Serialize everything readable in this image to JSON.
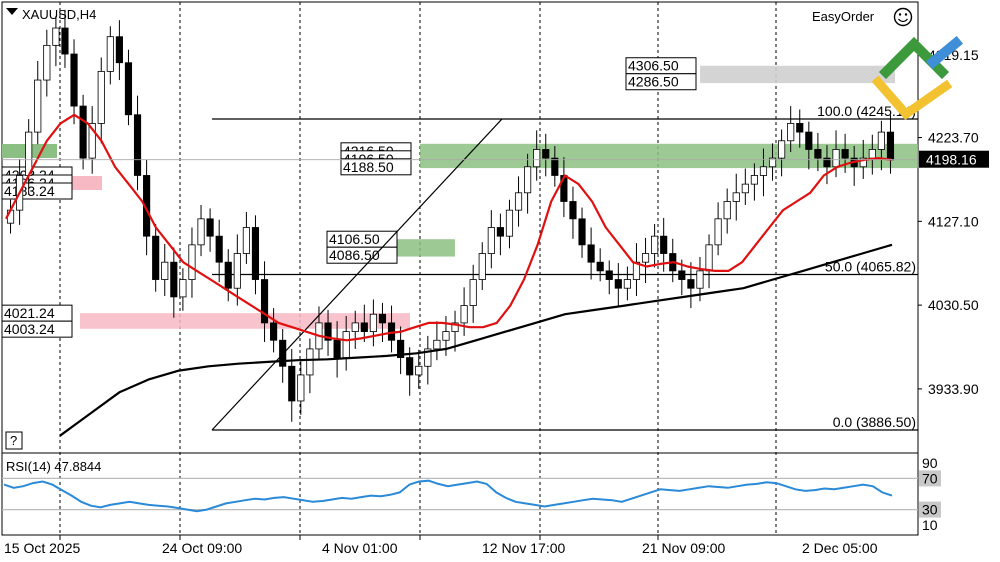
{
  "header": {
    "symbol": "XAUUSD,H4",
    "brand": "EasyOrder",
    "help": "?"
  },
  "colors": {
    "ma_short": "#e01010",
    "ma_long": "#000000",
    "rsi": "#2a8ad8",
    "zone_green": "#8cbf83",
    "zone_pink": "#f7b9c3",
    "zone_gray": "#cfcfcf",
    "logo_green": "#3c9a3c",
    "logo_blue": "#3e8fd8",
    "logo_yellow": "#f2c230"
  },
  "chart_data": {
    "type": "candlestick",
    "symbol": "XAUUSD",
    "timeframe": "H4",
    "ylim": [
      3860,
      4380
    ],
    "y_ticks": [
      "4319.15",
      "4223.70",
      "4127.10",
      "4030.50",
      "3933.90"
    ],
    "x_ticks": [
      "15 Oct 2025",
      "24 Oct 09:00",
      "4 Nov 01:00",
      "12 Nov 17:00",
      "21 Nov 09:00",
      "2 Dec 05:00"
    ],
    "current_price": "4198.16",
    "candles_close": [
      4140,
      4180,
      4230,
      4290,
      4330,
      4350,
      4320,
      4260,
      4200,
      4240,
      4300,
      4340,
      4310,
      4250,
      4180,
      4110,
      4060,
      4080,
      4040,
      4060,
      4100,
      4130,
      4110,
      4080,
      4050,
      4090,
      4120,
      4060,
      4010,
      3990,
      3960,
      3920,
      3950,
      3980,
      4010,
      3990,
      3970,
      4000,
      4010,
      4000,
      4020,
      4010,
      3990,
      3970,
      3950,
      3960,
      3980,
      3990,
      4000,
      4010,
      4030,
      4060,
      4090,
      4120,
      4110,
      4140,
      4160,
      4190,
      4210,
      4200,
      4180,
      4150,
      4130,
      4100,
      4080,
      4070,
      4060,
      4050,
      4060,
      4080,
      4090,
      4110,
      4090,
      4070,
      4060,
      4050,
      4070,
      4100,
      4130,
      4150,
      4160,
      4170,
      4180,
      4190,
      4200,
      4220,
      4240,
      4230,
      4210,
      4200,
      4190,
      4210,
      4200,
      4190,
      4200,
      4210,
      4230,
      4198
    ],
    "ma_short": {
      "period_label": "",
      "values": [
        4130,
        4160,
        4190,
        4220,
        4240,
        4250,
        4240,
        4220,
        4190,
        4170,
        4150,
        4120,
        4100,
        4080,
        4070,
        4060,
        4050,
        4040,
        4030,
        4020,
        4010,
        4005,
        4000,
        3995,
        3992,
        3990,
        3992,
        3995,
        3998,
        4000,
        4005,
        4010,
        4010,
        4008,
        4005,
        4005,
        4010,
        4030,
        4060,
        4100,
        4150,
        4180,
        4170,
        4150,
        4120,
        4100,
        4080,
        4075,
        4078,
        4080,
        4075,
        4072,
        4070,
        4070,
        4080,
        4100,
        4120,
        4140,
        4150,
        4160,
        4180,
        4190,
        4195,
        4198,
        4200,
        4198
      ]
    },
    "ma_long": {
      "period_label": "",
      "values": [
        3880,
        3905,
        3930,
        3945,
        3955,
        3960,
        3963,
        3965,
        3967,
        3968,
        3970,
        3972,
        3975,
        3980,
        3990,
        4000,
        4010,
        4020,
        4025,
        4030,
        4035,
        4040,
        4045,
        4050,
        4060,
        4070,
        4080,
        4090,
        4100
      ]
    },
    "zones": [
      {
        "color": "pink",
        "labels": [
          "4021.24",
          "4003.24"
        ],
        "upper": 4021.24,
        "lower": 4003.24
      },
      {
        "color": "green",
        "labels": [
          "4106.50",
          "4086.50"
        ],
        "upper": 4106.5,
        "lower": 4086.5
      },
      {
        "color": "green",
        "labels": [
          "4216.50",
          "4196.50",
          "4188.50"
        ],
        "upper": 4216.5,
        "lower": 4188.5
      },
      {
        "color": "gray",
        "labels": [
          "4306.50",
          "4286.50"
        ],
        "upper": 4306.5,
        "lower": 4286.5
      }
    ],
    "left_stack_labels": [
      "4203.24",
      "4196.24",
      "4183.24"
    ],
    "fibonacci": [
      {
        "label": "100.0 (4245.14)",
        "price": 4245.14
      },
      {
        "label": "50.0 (4065.82)",
        "price": 4065.82
      },
      {
        "label": "0.0 (3886.50)",
        "price": 3886.5
      }
    ]
  },
  "rsi_data": {
    "label": "RSI(14) 47.8844",
    "ylim": [
      0,
      100
    ],
    "levels": [
      "90",
      "70",
      "30",
      "10"
    ],
    "values": [
      62,
      58,
      60,
      64,
      66,
      62,
      55,
      48,
      40,
      35,
      33,
      36,
      38,
      40,
      38,
      36,
      35,
      34,
      32,
      30,
      28,
      30,
      34,
      38,
      40,
      42,
      44,
      43,
      45,
      46,
      44,
      42,
      40,
      41,
      43,
      45,
      44,
      46,
      48,
      47,
      49,
      52,
      62,
      66,
      67,
      63,
      60,
      62,
      64,
      66,
      63,
      52,
      45,
      40,
      38,
      36,
      34,
      36,
      38,
      40,
      42,
      44,
      43,
      42,
      40,
      44,
      48,
      52,
      56,
      55,
      54,
      56,
      58,
      60,
      59,
      58,
      60,
      62,
      63,
      65,
      64,
      60,
      56,
      54,
      55,
      57,
      56,
      58,
      60,
      62,
      60,
      52,
      48
    ]
  }
}
